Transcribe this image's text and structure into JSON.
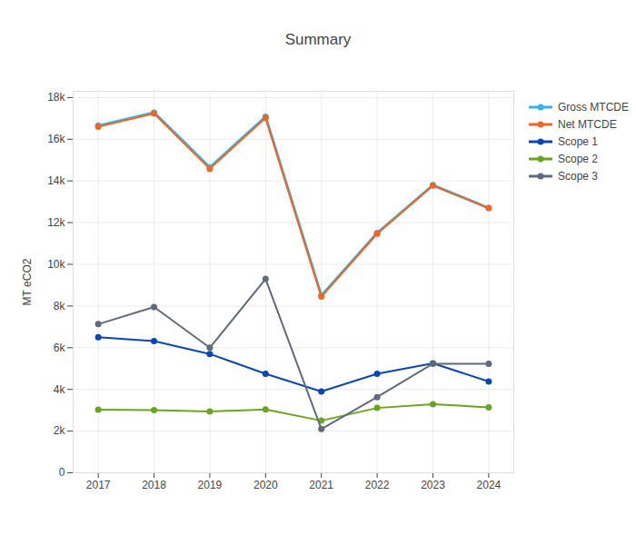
{
  "chart_data": {
    "type": "line",
    "title": "Summary",
    "y_label": "MT eCO2",
    "x": [
      2017,
      2018,
      2019,
      2020,
      2021,
      2022,
      2023,
      2024
    ],
    "xlim": [
      2016.55,
      2024.45
    ],
    "xticks": [
      2017,
      2018,
      2019,
      2020,
      2021,
      2022,
      2023,
      2024
    ],
    "ylim": [
      0,
      18300
    ],
    "yticks": [
      0,
      {
        "value": 2000,
        "label": "2k"
      },
      {
        "value": 4000,
        "label": "4k"
      },
      {
        "value": 6000,
        "label": "6k"
      },
      {
        "value": 8000,
        "label": "8k"
      },
      {
        "value": 10000,
        "label": "10k"
      },
      {
        "value": 12000,
        "label": "12k"
      },
      {
        "value": 14000,
        "label": "14k"
      },
      {
        "value": 16000,
        "label": "16k"
      },
      {
        "value": 18000,
        "label": "18k"
      }
    ],
    "grid": true,
    "legend": "right",
    "marker": "circle",
    "line_style": "solid",
    "series": [
      {
        "name": "Gross MTCDE",
        "color": "#35b4ec",
        "values": [
          16650,
          17280,
          14650,
          17080,
          8500,
          11500,
          13800,
          12700
        ]
      },
      {
        "name": "Net MTCDE",
        "color": "#f26522",
        "values": [
          16600,
          17230,
          14580,
          17030,
          8450,
          11470,
          13780,
          12700
        ]
      },
      {
        "name": "Scope 1",
        "color": "#0b47ad",
        "values": [
          6500,
          6320,
          5700,
          4750,
          3900,
          4750,
          5250,
          4380
        ]
      },
      {
        "name": "Scope 2",
        "color": "#6aa421",
        "values": [
          3030,
          3010,
          2940,
          3040,
          2500,
          3110,
          3290,
          3140
        ]
      },
      {
        "name": "Scope 3",
        "color": "#5f6b7a",
        "values": [
          7130,
          7950,
          6000,
          9300,
          2100,
          3630,
          5230,
          5230
        ]
      }
    ]
  }
}
